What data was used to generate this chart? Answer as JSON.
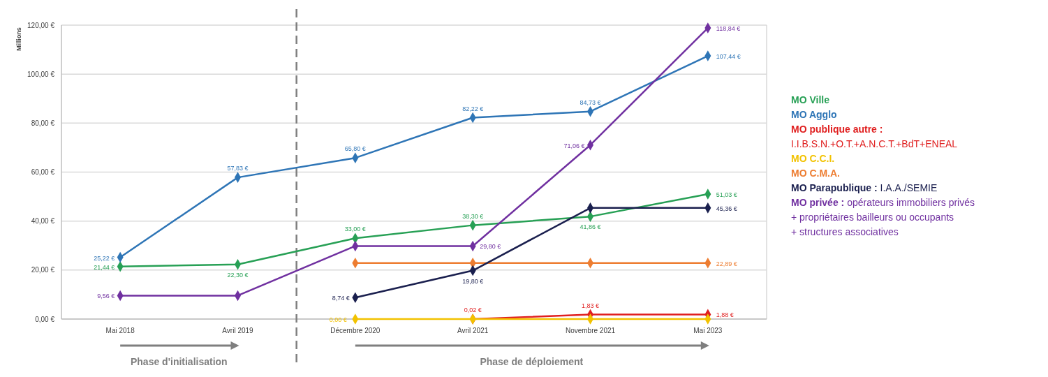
{
  "chart_data": {
    "type": "line",
    "ylabel": "Millions",
    "categories": [
      "Mai 2018",
      "Avril 2019",
      "Décembre 2020",
      "Avril 2021",
      "Novembre 2021",
      "Mai 2023"
    ],
    "ylim": [
      0,
      120
    ],
    "yticks": [
      {
        "value": 0,
        "label": "0,00 €"
      },
      {
        "value": 20,
        "label": "20,00 €"
      },
      {
        "value": 40,
        "label": "40,00 €"
      },
      {
        "value": 60,
        "label": "60,00 €"
      },
      {
        "value": 80,
        "label": "80,00 €"
      },
      {
        "value": 100,
        "label": "100,00 €"
      },
      {
        "value": 120,
        "label": "120,00 €"
      }
    ],
    "grid": "y",
    "legend": "right",
    "marker": "diamond",
    "line_style": "solid",
    "series": [
      {
        "name": "MO Ville",
        "color": "#27a055",
        "values": [
          21.44,
          22.3,
          33,
          38.3,
          41.86,
          51.03
        ],
        "value_labels": [
          "21,44 €",
          "22,30 €",
          "33,00 €",
          "38,30 €",
          "41,86 €",
          "51,03 €"
        ]
      },
      {
        "name": "MO Agglo",
        "color": "#2e75b6",
        "values": [
          25.22,
          57.83,
          65.8,
          82.22,
          84.73,
          107.44
        ],
        "value_labels": [
          "25,22 €",
          "57,83 €",
          "65,80 €",
          "82,22 €",
          "84,73 €",
          "107,44 €"
        ]
      },
      {
        "name": "MO publique autre : I.I.B.S.N.+O.T.+A.N.C.T.+BdT+ENEAL",
        "color": "#e02020",
        "values": [
          null,
          null,
          null,
          0.02,
          1.83,
          1.88
        ],
        "value_labels": [
          null,
          null,
          null,
          "0,02 €",
          "1,83 €",
          "1,88 €"
        ]
      },
      {
        "name": "MO C.C.I.",
        "color": "#f2c200",
        "values": [
          null,
          null,
          0,
          0,
          0,
          0
        ],
        "value_labels": [
          null,
          null,
          "0,00 €",
          null,
          null,
          null
        ]
      },
      {
        "name": "MO C.M.A.",
        "color": "#ed7d31",
        "values": [
          null,
          null,
          22.89,
          22.89,
          22.89,
          22.89
        ],
        "value_labels": [
          null,
          null,
          null,
          null,
          null,
          "22,89 €"
        ]
      },
      {
        "name": "MO Parapublique : I.A.A./SEMIE",
        "color": "#1a1f4e",
        "values": [
          null,
          null,
          8.74,
          19.8,
          45.36,
          45.36
        ],
        "value_labels": [
          null,
          null,
          "8,74 €",
          "19,80 €",
          null,
          "45,36 €"
        ]
      },
      {
        "name": "MO privée : opérateurs immobiliers privés + propriétaires bailleurs ou occupants + structures associatives",
        "color": "#7030a0",
        "values": [
          9.56,
          9.56,
          29.8,
          29.8,
          71.06,
          118.84
        ],
        "value_labels": [
          "9,56 €",
          null,
          null,
          "29,80 €",
          "71,06 €",
          "118,84 €"
        ]
      }
    ],
    "annotations": [
      "Phase d'initialisation",
      "Phase de déploiement"
    ]
  }
}
